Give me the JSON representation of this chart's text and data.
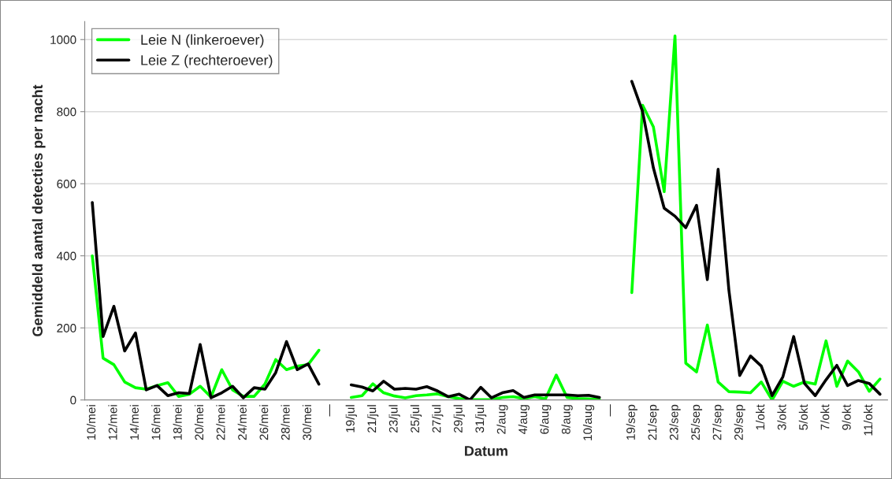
{
  "chart_data": {
    "type": "line",
    "xlabel": "Datum",
    "ylabel": "Gemiddeld aantal detecties per nacht",
    "categories": [
      "10/mei",
      null,
      "12/mei",
      null,
      "14/mei",
      null,
      "16/mei",
      null,
      "18/mei",
      null,
      "20/mei",
      null,
      "22/mei",
      null,
      "24/mei",
      null,
      "26/mei",
      null,
      "28/mei",
      null,
      "30/mei",
      null,
      "—",
      null,
      "19/jul",
      null,
      "21/jul",
      null,
      "23/jul",
      null,
      "25/jul",
      null,
      "27/jul",
      null,
      "29/jul",
      null,
      "31/jul",
      null,
      "2/aug",
      null,
      "4/aug",
      null,
      "6/aug",
      null,
      "8/aug",
      null,
      "10/aug",
      null,
      "—",
      null,
      "19/sep",
      null,
      "21/sep",
      null,
      "23/sep",
      null,
      "25/sep",
      null,
      "27/sep",
      null,
      "29/sep",
      null,
      "1/okt",
      null,
      "3/okt",
      null,
      "5/okt",
      null,
      "7/okt",
      null,
      "9/okt",
      null,
      "11/okt",
      null
    ],
    "series": [
      {
        "name": "Leie N (linkeroever)",
        "color": "#00ff00",
        "values": [
          400,
          116,
          98,
          50,
          34,
          30,
          40,
          48,
          10,
          16,
          38,
          8,
          84,
          28,
          10,
          10,
          44,
          112,
          84,
          94,
          98,
          138,
          null,
          null,
          7,
          12,
          45,
          20,
          11,
          6,
          12,
          14,
          17,
          9,
          4,
          1,
          1,
          1,
          7,
          9,
          4,
          9,
          3,
          69,
          7,
          4,
          3,
          2,
          null,
          null,
          298,
          818,
          758,
          578,
          1010,
          102,
          78,
          208,
          50,
          23,
          22,
          20,
          50,
          0,
          52,
          38,
          50,
          44,
          164,
          38,
          108,
          78,
          24,
          58
        ]
      },
      {
        "name": "Leie Z (rechteroever)",
        "color": "#000000",
        "values": [
          548,
          176,
          260,
          136,
          186,
          28,
          40,
          12,
          20,
          18,
          154,
          6,
          20,
          38,
          6,
          34,
          30,
          76,
          162,
          84,
          100,
          44,
          null,
          null,
          42,
          36,
          25,
          52,
          30,
          32,
          30,
          37,
          25,
          9,
          16,
          0,
          35,
          6,
          20,
          26,
          7,
          14,
          14,
          14,
          14,
          12,
          13,
          7,
          null,
          null,
          884,
          800,
          644,
          532,
          510,
          478,
          540,
          334,
          640,
          304,
          68,
          122,
          94,
          12,
          64,
          176,
          46,
          12,
          56,
          96,
          40,
          54,
          46,
          16
        ]
      }
    ],
    "ylim": [
      0,
      1050
    ],
    "yticks": [
      0,
      200,
      400,
      600,
      800,
      1000
    ],
    "grid": "y",
    "legend": "top left",
    "marker": "none",
    "line_style": "solid"
  }
}
